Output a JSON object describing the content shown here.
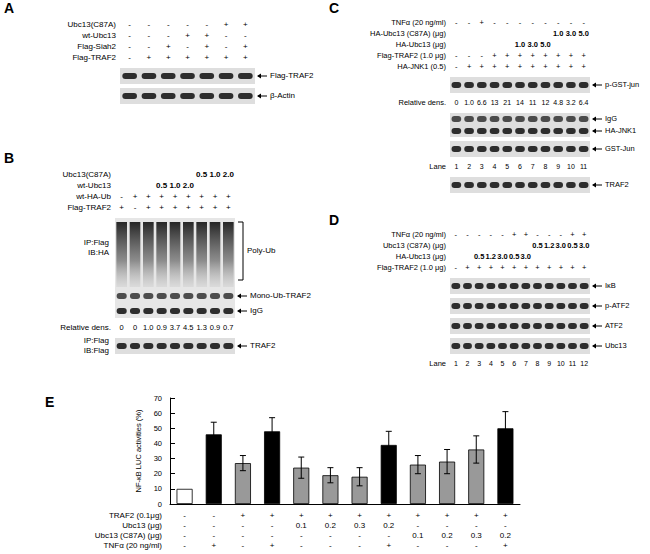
{
  "panels": [
    {
      "letter": "A",
      "conditions": [
        {
          "label": "Ubc13(C87A)",
          "values": [
            "-",
            "-",
            "-",
            "-",
            "-",
            "+",
            "+"
          ]
        },
        {
          "label": "wt-Ubc13",
          "values": [
            "-",
            "-",
            "-",
            "+",
            "+",
            "-",
            "-"
          ]
        },
        {
          "label": "Flag-Siah2",
          "values": [
            "-",
            "-",
            "+",
            "-",
            "+",
            "-",
            "+"
          ]
        },
        {
          "label": "Flag-TRAF2",
          "values": [
            "-",
            "+",
            "+",
            "+",
            "+",
            "+",
            "+"
          ]
        }
      ],
      "items": [
        {
          "kind": "band",
          "right": [
            "Flag-TRAF2"
          ]
        },
        {
          "kind": "band",
          "right": [
            "β-Actin"
          ]
        }
      ]
    },
    {
      "letter": "B",
      "conditions": [
        {
          "label": "Ubc13(C87A)",
          "values": [
            "",
            "",
            "",
            "",
            "",
            "",
            "0.5",
            "1.0",
            "2.0"
          ]
        },
        {
          "label": "wt-Ubc13",
          "values": [
            "",
            "",
            "",
            "0.5",
            "1.0",
            "2.0",
            "",
            "",
            ""
          ]
        },
        {
          "label": "wt-HA-Ub",
          "values": [
            "-",
            "+",
            "+",
            "+",
            "+",
            "+",
            "+",
            "+",
            "+"
          ]
        },
        {
          "label": "Flag-TRAF2",
          "values": [
            "+",
            "-",
            "+",
            "+",
            "+",
            "+",
            "+",
            "+",
            "+"
          ]
        }
      ],
      "items": [
        {
          "kind": "smear",
          "left": [
            "IP:Flag",
            "IB:HA"
          ],
          "right": [
            "Poly-Ub",
            "Mono-Ub-TRAF2",
            "IgG"
          ]
        },
        {
          "kind": "density",
          "label": "Relative dens.",
          "values": [
            "0",
            "0",
            "1.0",
            "0.9",
            "3.7",
            "4.5",
            "1.3",
            "0.9",
            "0.7"
          ]
        },
        {
          "kind": "band",
          "left": [
            "IP:Flag",
            "IB:Flag"
          ],
          "right": [
            "TRAF2"
          ]
        }
      ]
    },
    {
      "letter": "C",
      "conditions": [
        {
          "label": "TNFα (20 ng/ml)",
          "values": [
            "-",
            "-",
            "+",
            "-",
            "-",
            "-",
            "-",
            "-",
            "-",
            "-",
            "-"
          ]
        },
        {
          "label": "HA-Ubc13 (C87A) (μg)",
          "values": [
            "",
            "",
            "",
            "",
            "",
            "",
            "",
            "",
            "1.0",
            "3.0",
            "5.0"
          ]
        },
        {
          "label": "HA-Ubc13 (μg)",
          "values": [
            "",
            "",
            "",
            "",
            "",
            "1.0",
            "3.0",
            "5.0",
            "",
            "",
            ""
          ]
        },
        {
          "label": "Flag-TRAF2 (1.0 μg)",
          "values": [
            "-",
            "-",
            "-",
            "+",
            "+",
            "+",
            "+",
            "+",
            "+",
            "+",
            "+"
          ]
        },
        {
          "label": "HA-JNK1 (0.5)",
          "values": [
            "-",
            "+",
            "+",
            "+",
            "+",
            "+",
            "+",
            "+",
            "+",
            "+",
            "+"
          ]
        }
      ],
      "items": [
        {
          "kind": "band",
          "right": [
            "p-GST-jun"
          ]
        },
        {
          "kind": "density",
          "label": "Relative dens.",
          "values": [
            "0",
            "1.0",
            "6.6",
            "13",
            "21",
            "14",
            "11",
            "12",
            "4.8",
            "3.2",
            "6.4"
          ]
        },
        {
          "kind": "band",
          "right": [
            "IgG",
            "HA-JNK1"
          ]
        },
        {
          "kind": "band",
          "right": [
            "GST-Jun"
          ]
        },
        {
          "kind": "lanes",
          "label": "Lane",
          "values": [
            "1",
            "2",
            "3",
            "4",
            "5",
            "6",
            "7",
            "8",
            "9",
            "10",
            "11"
          ]
        },
        {
          "kind": "band",
          "right": [
            "TRAF2"
          ]
        }
      ]
    },
    {
      "letter": "D",
      "conditions": [
        {
          "label": "TNFα (20 ng/ml)",
          "values": [
            "-",
            "-",
            "-",
            "-",
            "-",
            "+",
            "+",
            "-",
            "-",
            "-",
            "+",
            "+"
          ]
        },
        {
          "label": "Ubc13 (C87A) (μg)",
          "values": [
            "",
            "",
            "",
            "",
            "",
            "",
            "",
            "0.5",
            "1.2",
            "3.0",
            "0.5",
            "3.0"
          ]
        },
        {
          "label": "HA-Ubc13 (μg)",
          "values": [
            "",
            "",
            "0.5",
            "1.2",
            "3.0",
            "0.5",
            "3.0",
            "",
            "",
            "",
            "",
            ""
          ]
        },
        {
          "label": "Flag-TRAF2 (1.0 μg)",
          "values": [
            "-",
            "+",
            "+",
            "+",
            "+",
            "+",
            "+",
            "+",
            "+",
            "+",
            "+",
            "+"
          ]
        }
      ],
      "items": [
        {
          "kind": "band",
          "right": [
            "IκB"
          ]
        },
        {
          "kind": "band",
          "right": [
            "p-ATF2"
          ]
        },
        {
          "kind": "band",
          "right": [
            "ATF2"
          ]
        },
        {
          "kind": "band",
          "right": [
            "Ubc13"
          ]
        },
        {
          "kind": "lanes",
          "label": "Lane",
          "values": [
            "1",
            "2",
            "3",
            "4",
            "5",
            "6",
            "7",
            "8",
            "9",
            "10",
            "11",
            "12"
          ]
        }
      ]
    }
  ],
  "chart_data": {
    "type": "bar",
    "title": "E",
    "ylabel": "NF-κB LUC activities (%)",
    "categories": [
      null,
      null,
      null,
      null,
      null,
      null,
      null,
      null,
      null,
      null,
      null,
      null
    ],
    "values": [
      10,
      46,
      27,
      48,
      24,
      19,
      18,
      39,
      26,
      28,
      36,
      50
    ],
    "errors": [
      0,
      8,
      5,
      9,
      7,
      5,
      6,
      9,
      6,
      8,
      9,
      11
    ],
    "colors": [
      "#ffffff",
      "#000000",
      "#999999",
      "#000000",
      "#999999",
      "#999999",
      "#999999",
      "#000000",
      "#999999",
      "#999999",
      "#999999",
      "#000000"
    ],
    "ylim": [
      0,
      70
    ],
    "yticks": [
      0,
      10,
      20,
      30,
      40,
      50,
      60,
      70
    ],
    "grid": false,
    "tick_labels": "y",
    "conditions": [
      {
        "label": "TRAF2 (0.1μg)",
        "values": [
          "-",
          "-",
          "+",
          "+",
          "+",
          "+",
          "+",
          "+",
          "+",
          "+",
          "+",
          "+"
        ]
      },
      {
        "label": "Ubc13 (μg)",
        "values": [
          "-",
          "-",
          "-",
          "-",
          "0.1",
          "0.2",
          "0.3",
          "0.2",
          "-",
          "-",
          "-",
          "-"
        ]
      },
      {
        "label": "Ubc13 (C87A) (μg)",
        "values": [
          "-",
          "-",
          "-",
          "-",
          "-",
          "-",
          "-",
          "-",
          "0.1",
          "0.2",
          "0.3",
          "0.2"
        ]
      },
      {
        "label": "TNFα (20 ng/ml)",
        "values": [
          "-",
          "+",
          "-",
          "+",
          "-",
          "-",
          "-",
          "+",
          "-",
          "-",
          "-",
          "+"
        ]
      }
    ]
  }
}
